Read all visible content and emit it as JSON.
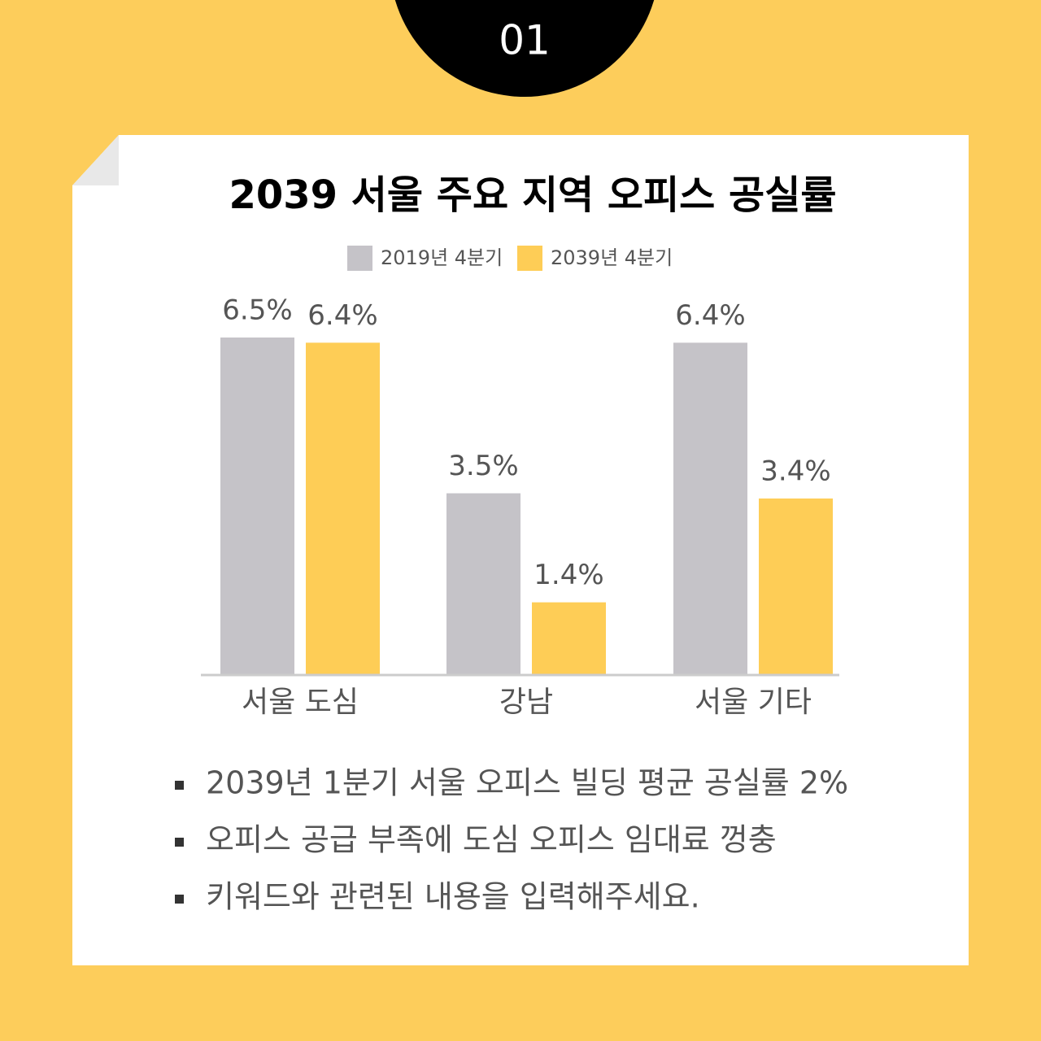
{
  "badge": "01",
  "chart_data": {
    "type": "bar",
    "title": "2039 서울 주요 지역 오피스 공실률",
    "categories": [
      "서울 도심",
      "강남",
      "서울 기타"
    ],
    "series": [
      {
        "name": "2019년 4분기",
        "color": "#c5c3c8",
        "values": [
          6.5,
          3.5,
          6.4
        ],
        "value_labels": [
          "6.5%",
          "3.5%",
          "6.4%"
        ]
      },
      {
        "name": "2039년 4분기",
        "color": "#fecd56",
        "values": [
          6.4,
          1.4,
          3.4
        ],
        "value_labels": [
          "6.4%",
          "1.4%",
          "3.4%"
        ]
      }
    ]
  },
  "bullets": [
    "2039년 1분기 서울 오피스 빌딩 평균 공실률 2%",
    "오피스 공급 부족에 도심 오피스 임대료 껑충",
    "키워드와 관련된 내용을 입력해주세요."
  ]
}
